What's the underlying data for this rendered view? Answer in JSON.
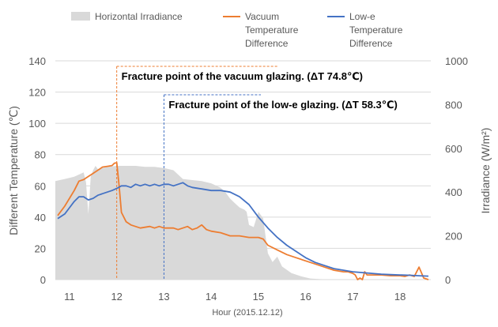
{
  "chart_data": {
    "type": "line",
    "xlabel": "Hour (2015.12.12)",
    "ylabel": "Different Temperature (℃)",
    "y2label": "Irradiance (W/m²)",
    "xlim": [
      10.7,
      18.65
    ],
    "ylim": [
      0,
      140
    ],
    "y2lim": [
      0,
      1000
    ],
    "xticks": [
      11,
      12,
      13,
      14,
      15,
      16,
      17,
      18
    ],
    "yticks": [
      0,
      20,
      40,
      60,
      80,
      100,
      120,
      140
    ],
    "y2ticks": [
      0,
      200,
      400,
      600,
      800,
      1000
    ],
    "grid": "horizontal",
    "legend_position": "top",
    "series": [
      {
        "name": "Horizontal Irradiance",
        "type": "area",
        "axis": "right",
        "color": "#d9d9d9",
        "x": [
          10.7,
          10.9,
          11.1,
          11.3,
          11.35,
          11.4,
          11.45,
          11.5,
          11.55,
          11.6,
          11.8,
          12.0,
          12.2,
          12.4,
          12.6,
          12.8,
          13.0,
          13.2,
          13.3,
          13.4,
          13.6,
          13.8,
          14.0,
          14.2,
          14.3,
          14.4,
          14.5,
          14.6,
          14.7,
          14.75,
          14.8,
          14.9,
          15.0,
          15.1,
          15.2,
          15.3,
          15.4,
          15.5,
          15.7,
          15.9,
          16.1,
          16.3,
          16.5,
          16.7,
          16.9,
          17.0,
          17.2,
          17.4,
          17.6,
          17.8,
          18.0,
          18.2,
          18.4,
          18.6
        ],
        "y": [
          450,
          460,
          470,
          490,
          445,
          300,
          470,
          500,
          520,
          505,
          515,
          520,
          520,
          520,
          515,
          515,
          510,
          500,
          480,
          460,
          455,
          450,
          440,
          420,
          400,
          370,
          350,
          330,
          320,
          310,
          250,
          240,
          310,
          280,
          120,
          80,
          105,
          60,
          30,
          15,
          5,
          2,
          1,
          0,
          0,
          0,
          0,
          0,
          0,
          0,
          0,
          0,
          0,
          0
        ]
      },
      {
        "name": "Vacuum Temperature Difference",
        "type": "line",
        "axis": "left",
        "color": "#ed7d31",
        "x": [
          10.75,
          10.9,
          11.0,
          11.1,
          11.2,
          11.3,
          11.4,
          11.5,
          11.6,
          11.7,
          11.8,
          11.9,
          11.95,
          12.0,
          12.05,
          12.1,
          12.2,
          12.3,
          12.5,
          12.7,
          12.8,
          12.9,
          13.0,
          13.1,
          13.2,
          13.3,
          13.4,
          13.5,
          13.6,
          13.7,
          13.8,
          13.9,
          14.0,
          14.2,
          14.4,
          14.6,
          14.8,
          15.0,
          15.1,
          15.2,
          15.4,
          15.6,
          15.8,
          16.0,
          16.2,
          16.4,
          16.6,
          16.8,
          16.9,
          17.0,
          17.05,
          17.1,
          17.15,
          17.2,
          17.25,
          17.3,
          17.4,
          17.6,
          17.8,
          18.0,
          18.1,
          18.2,
          18.3,
          18.4,
          18.5,
          18.6
        ],
        "y": [
          41,
          47,
          52,
          57,
          63,
          64,
          66,
          68,
          70,
          72,
          72.5,
          73,
          74.5,
          74.8,
          60,
          43,
          37,
          35,
          33,
          34,
          33,
          34,
          33,
          33,
          33,
          32,
          33,
          34,
          32,
          33,
          35,
          32,
          31,
          30,
          28,
          28,
          27,
          27,
          26,
          22,
          19,
          16,
          14,
          12,
          10,
          8,
          6,
          5,
          5,
          4,
          3,
          0,
          1,
          0,
          5,
          3,
          3,
          3,
          2.5,
          2.5,
          2,
          3,
          2,
          8,
          1,
          0
        ]
      },
      {
        "name": "Low-e Temperature Difference",
        "type": "line",
        "axis": "left",
        "color": "#4472c4",
        "x": [
          10.75,
          10.9,
          11.0,
          11.1,
          11.2,
          11.3,
          11.4,
          11.5,
          11.6,
          11.7,
          11.8,
          11.9,
          12.0,
          12.1,
          12.2,
          12.3,
          12.4,
          12.5,
          12.6,
          12.7,
          12.8,
          12.9,
          13.0,
          13.1,
          13.2,
          13.3,
          13.4,
          13.5,
          13.6,
          13.8,
          14.0,
          14.2,
          14.4,
          14.6,
          14.8,
          15.0,
          15.2,
          15.4,
          15.6,
          15.8,
          16.0,
          16.2,
          16.4,
          16.6,
          16.8,
          17.0,
          17.2,
          17.4,
          17.6,
          17.8,
          18.0,
          18.2,
          18.4,
          18.6
        ],
        "y": [
          39,
          42,
          46,
          50,
          53,
          53,
          51,
          52,
          54,
          55,
          56,
          57,
          58.3,
          60,
          60,
          59,
          61,
          60,
          61,
          60,
          61,
          60,
          61,
          61,
          60,
          61,
          62,
          60,
          59,
          58,
          57,
          57,
          56,
          53,
          48,
          40,
          33,
          27,
          22,
          18,
          14,
          11,
          9,
          7,
          6,
          5,
          4.5,
          4,
          3.5,
          3.2,
          3,
          2.8,
          2.5,
          2.2
        ]
      }
    ],
    "annotations": [
      {
        "text": "Fracture point of the vacuum glazing. (ΔT 74.8℃)",
        "x": 12.0,
        "color": "#ed7d31"
      },
      {
        "text": "Fracture point of the low-e glazing. (ΔT 58.3℃)",
        "x": 13.0,
        "color": "#4472c4"
      }
    ]
  }
}
